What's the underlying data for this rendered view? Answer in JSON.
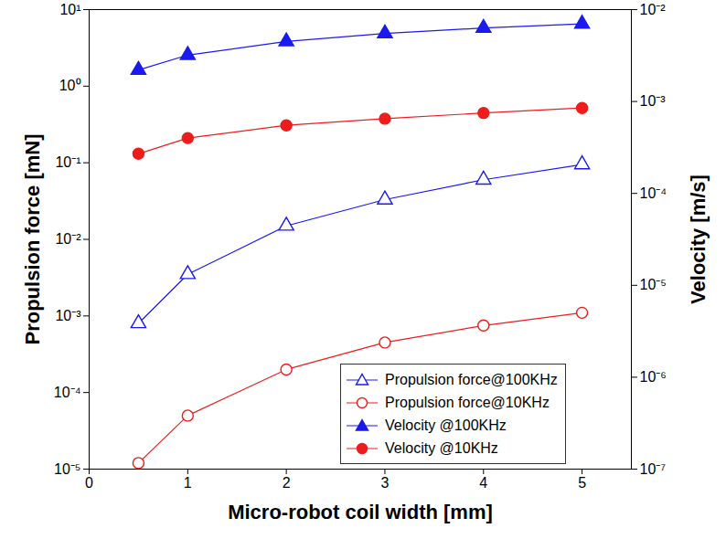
{
  "chart_data": {
    "type": "line",
    "x_label": "Micro-robot coil width [mm]",
    "y_label": "Propulsion force [mN]",
    "y2_label": "Velocity [m/s]",
    "log": "y",
    "legend": "lower right",
    "xlim": [
      0,
      5.5
    ],
    "xticks": [
      0,
      1,
      2,
      3,
      4,
      5
    ],
    "ylim": [
      1e-05,
      10
    ],
    "yticks": [
      {
        "value": 1e-05,
        "label": "10⁻⁵"
      },
      {
        "value": 0.0001,
        "label": "10⁻⁴"
      },
      {
        "value": 0.001,
        "label": "10⁻³"
      },
      {
        "value": 0.01,
        "label": "10⁻²"
      },
      {
        "value": 0.1,
        "label": "10⁻¹"
      },
      {
        "value": 1,
        "label": "10⁰"
      },
      {
        "value": 10,
        "label": "10¹"
      }
    ],
    "y2lim": [
      1e-07,
      0.01
    ],
    "y2ticks": [
      {
        "value": 1e-07,
        "label": "10⁻⁷"
      },
      {
        "value": 1e-06,
        "label": "10⁻⁶"
      },
      {
        "value": 1e-05,
        "label": "10⁻⁵"
      },
      {
        "value": 0.0001,
        "label": "10⁻⁴"
      },
      {
        "value": 0.001,
        "label": "10⁻³"
      },
      {
        "value": 0.01,
        "label": "10⁻²"
      }
    ],
    "x": [
      0.5,
      1,
      2,
      3,
      4,
      5
    ],
    "series": [
      {
        "name": "Propulsion force@100KHz",
        "color": "#1a1aee",
        "marker": "triangle-open",
        "axis": "y",
        "values": [
          0.0008,
          0.0035,
          0.015,
          0.033,
          0.06,
          0.095
        ]
      },
      {
        "name": "Propulsion force@10KHz",
        "color": "#ee1c1c",
        "marker": "circle-open",
        "axis": "y",
        "values": [
          1.2e-05,
          5e-05,
          0.0002,
          0.00045,
          0.00075,
          0.0011
        ]
      },
      {
        "name": "Velocity @100KHz",
        "color": "#1a1aee",
        "marker": "triangle",
        "axis": "y2",
        "values": [
          0.0022,
          0.0032,
          0.0045,
          0.0055,
          0.0063,
          0.007
        ]
      },
      {
        "name": "Velocity @10KHz",
        "color": "#ee1c1c",
        "marker": "circle",
        "axis": "y2",
        "values": [
          0.00027,
          0.0004,
          0.00055,
          0.00065,
          0.00075,
          0.00085
        ]
      }
    ]
  }
}
